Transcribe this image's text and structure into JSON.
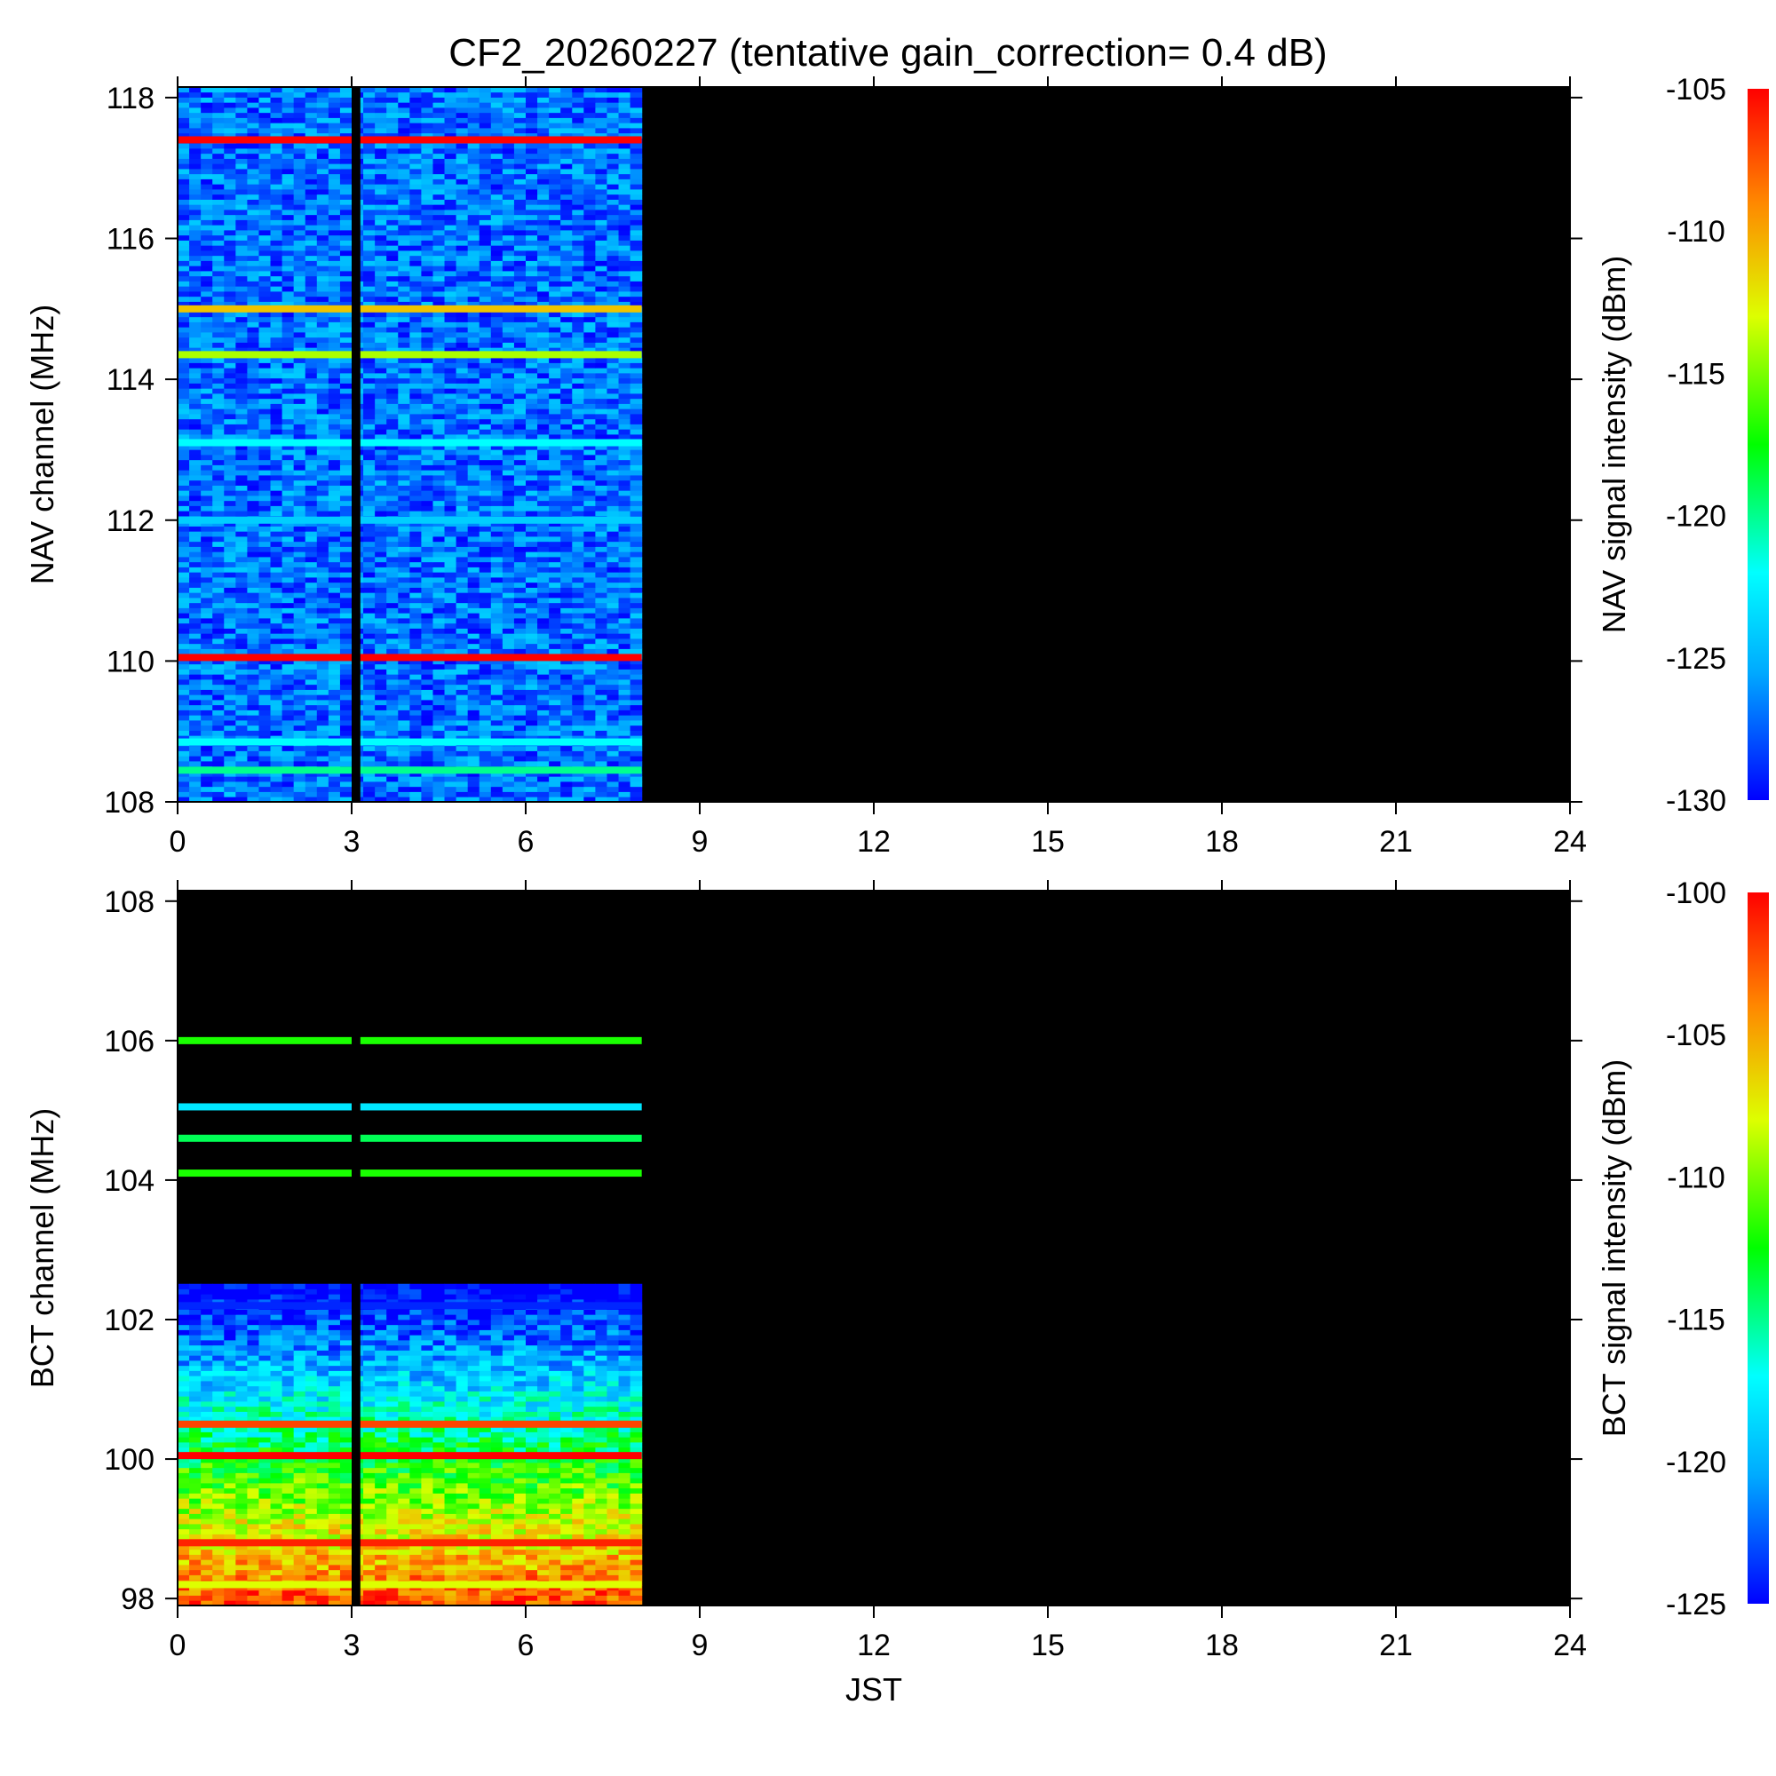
{
  "title": "CF2_20260227 (tentative gain_correction=  0.4 dB)",
  "chart_data": [
    {
      "type": "heatmap",
      "panel": "top",
      "title": "CF2_20260227 (tentative gain_correction=  0.4 dB)",
      "xlabel": "",
      "ylabel": "NAV channel (MHz)",
      "colorbar_label": "NAV signal intensity (dBm)",
      "xlim": [
        0,
        24
      ],
      "ylim": [
        108,
        118.15
      ],
      "xticks": [
        0,
        3,
        6,
        9,
        12,
        15,
        18,
        21,
        24
      ],
      "yticks": [
        108,
        110,
        112,
        114,
        116,
        118
      ],
      "color_range": [
        -130,
        -105
      ],
      "colorbar_ticks": [
        -130,
        -125,
        -120,
        -115,
        -110,
        -105
      ],
      "data_end_hour": 8.0,
      "gap_hours": [
        3.0,
        3.15
      ],
      "background_level": -127,
      "strong_channels": [
        {
          "freq": 117.4,
          "level": -105
        },
        {
          "freq": 115.0,
          "level": -111
        },
        {
          "freq": 114.35,
          "level": -114
        },
        {
          "freq": 113.1,
          "level": -122
        },
        {
          "freq": 112.0,
          "level": -124
        },
        {
          "freq": 110.05,
          "level": -105
        },
        {
          "freq": 108.85,
          "level": -122
        },
        {
          "freq": 108.45,
          "level": -120
        }
      ]
    },
    {
      "type": "heatmap",
      "panel": "bottom",
      "title": "",
      "xlabel": "JST",
      "ylabel": "BCT channel (MHz)",
      "colorbar_label": "BCT signal intensity (dBm)",
      "xlim": [
        0,
        24
      ],
      "ylim": [
        97.9,
        108.15
      ],
      "xticks": [
        0,
        3,
        6,
        9,
        12,
        15,
        18,
        21,
        24
      ],
      "yticks": [
        98,
        100,
        102,
        104,
        106,
        108
      ],
      "color_range": [
        -125,
        -100
      ],
      "colorbar_ticks": [
        -125,
        -120,
        -115,
        -110,
        -105,
        -100
      ],
      "data_end_hour": 8.0,
      "gap_hours": [
        3.0,
        3.15
      ],
      "strong_channels": [
        {
          "freq": 106.0,
          "level": -112
        },
        {
          "freq": 105.05,
          "level": -118
        },
        {
          "freq": 104.6,
          "level": -114
        },
        {
          "freq": 104.1,
          "level": -112
        },
        {
          "freq": 102.2,
          "level": -124
        },
        {
          "freq": 100.5,
          "level": -102
        },
        {
          "freq": 100.05,
          "level": -100
        },
        {
          "freq": 98.8,
          "level": -101
        },
        {
          "freq": 98.2,
          "level": -108
        }
      ]
    }
  ]
}
